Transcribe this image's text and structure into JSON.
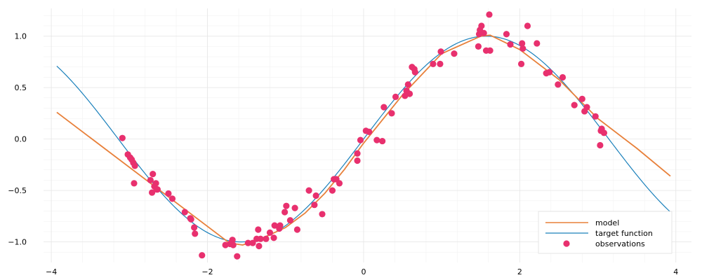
{
  "chart_data": {
    "type": "line",
    "title": "",
    "xlabel": "",
    "ylabel": "",
    "xlim": [
      -4.1,
      4.2
    ],
    "ylim": [
      -1.2,
      1.27
    ],
    "grid": true,
    "legend_position": "bottom-right",
    "x_ticks": [
      {
        "value": -4,
        "label": "−4"
      },
      {
        "value": -2,
        "label": "−2"
      },
      {
        "value": 0,
        "label": "0"
      },
      {
        "value": 2,
        "label": "2"
      },
      {
        "value": 4,
        "label": "4"
      }
    ],
    "y_ticks": [
      {
        "value": -1.0,
        "label": "−1.0"
      },
      {
        "value": -0.5,
        "label": "−0.5"
      },
      {
        "value": 0.0,
        "label": "0.0"
      },
      {
        "value": 0.5,
        "label": "0.5"
      },
      {
        "value": 1.0,
        "label": "1.0"
      }
    ],
    "series": [
      {
        "name": "model",
        "kind": "line",
        "color": "#e8803a",
        "x": [
          -3.93,
          -1.72,
          -1.55,
          -1.35,
          -1.2,
          -1.0,
          -0.75,
          -0.5,
          -0.25,
          0.0,
          0.5,
          1.0,
          1.5,
          1.62,
          2.0,
          2.5,
          3.0,
          3.5,
          3.93
        ],
        "y": [
          0.26,
          -1.01,
          -1.03,
          -0.98,
          -0.93,
          -0.86,
          -0.72,
          -0.53,
          -0.3,
          -0.04,
          0.43,
          0.83,
          1.0,
          1.01,
          0.87,
          0.58,
          0.2,
          -0.09,
          -0.36
        ]
      },
      {
        "name": "target function",
        "kind": "line",
        "color": "#1a80bb",
        "function": "sin",
        "x_range": [
          -3.93,
          3.93
        ]
      },
      {
        "name": "observations",
        "kind": "scatter",
        "color": "#e8306e",
        "x": [
          -3.09,
          -3.02,
          -2.99,
          -2.97,
          -2.95,
          -2.94,
          -2.93,
          -2.73,
          -2.71,
          -2.7,
          -2.68,
          -2.66,
          -2.65,
          -2.64,
          -2.5,
          -2.45,
          -2.29,
          -2.22,
          -2.21,
          -2.17,
          -2.16,
          -2.07,
          -1.77,
          -1.71,
          -1.69,
          -1.68,
          -1.67,
          -1.62,
          -1.48,
          -1.42,
          -1.37,
          -1.35,
          -1.34,
          -1.32,
          -1.25,
          -1.2,
          -1.15,
          -1.14,
          -1.08,
          -1.07,
          -1.01,
          -0.99,
          -0.94,
          -0.88,
          -0.85,
          -0.7,
          -0.63,
          -0.61,
          -0.53,
          -0.4,
          -0.38,
          -0.35,
          -0.31,
          -0.08,
          -0.08,
          -0.04,
          0.03,
          0.07,
          0.17,
          0.24,
          0.26,
          0.36,
          0.41,
          0.53,
          0.55,
          0.57,
          0.59,
          0.62,
          0.65,
          0.66,
          0.89,
          0.98,
          0.99,
          1.16,
          1.47,
          1.48,
          1.49,
          1.51,
          1.54,
          1.57,
          1.61,
          1.62,
          1.83,
          1.88,
          2.02,
          2.03,
          2.04,
          2.1,
          2.22,
          2.34,
          2.38,
          2.49,
          2.55,
          2.7,
          2.8,
          2.83,
          2.86,
          2.97,
          3.03,
          3.04,
          3.05,
          3.08
        ],
        "y": [
          0.01,
          -0.15,
          -0.18,
          -0.2,
          -0.23,
          -0.43,
          -0.26,
          -0.4,
          -0.52,
          -0.34,
          -0.46,
          -0.43,
          -0.49,
          -0.49,
          -0.53,
          -0.58,
          -0.71,
          -0.77,
          -0.78,
          -0.86,
          -0.92,
          -1.13,
          -1.03,
          -1.02,
          -1.0,
          -0.98,
          -1.03,
          -1.14,
          -1.01,
          -1.01,
          -0.97,
          -0.88,
          -1.04,
          -0.97,
          -0.97,
          -0.91,
          -0.96,
          -0.84,
          -0.87,
          -0.84,
          -0.71,
          -0.65,
          -0.79,
          -0.67,
          -0.88,
          -0.5,
          -0.64,
          -0.55,
          -0.73,
          -0.5,
          -0.39,
          -0.39,
          -0.43,
          -0.21,
          -0.14,
          -0.01,
          0.08,
          0.07,
          -0.01,
          -0.02,
          0.31,
          0.25,
          0.41,
          0.42,
          0.47,
          0.53,
          0.44,
          0.7,
          0.68,
          0.65,
          0.73,
          0.73,
          0.85,
          0.83,
          0.9,
          1.02,
          1.06,
          1.1,
          1.03,
          0.86,
          1.21,
          0.86,
          1.02,
          0.92,
          0.73,
          0.93,
          0.88,
          1.1,
          0.93,
          0.64,
          0.65,
          0.53,
          0.6,
          0.33,
          0.39,
          0.27,
          0.31,
          0.22,
          -0.06,
          0.08,
          0.1,
          0.06
        ]
      }
    ]
  },
  "legend": {
    "items": [
      {
        "label": "model",
        "kind": "line",
        "color": "#e8803a"
      },
      {
        "label": "target function",
        "kind": "line",
        "color": "#1a80bb"
      },
      {
        "label": "observations",
        "kind": "marker",
        "color": "#e8306e"
      }
    ]
  }
}
